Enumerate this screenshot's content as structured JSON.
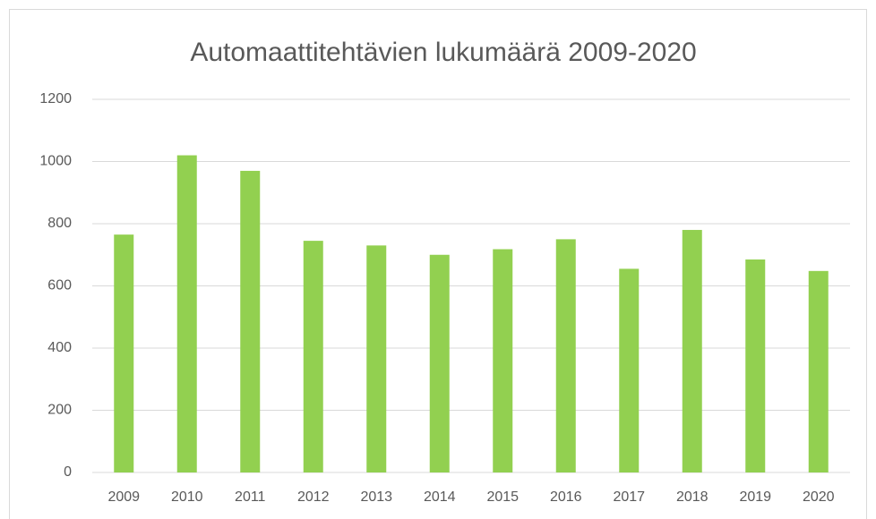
{
  "chart_data": {
    "type": "bar",
    "title": "Automaattitehtävien lukumäärä 2009-2020",
    "categories": [
      "2009",
      "2010",
      "2011",
      "2012",
      "2013",
      "2014",
      "2015",
      "2016",
      "2017",
      "2018",
      "2019",
      "2020"
    ],
    "values": [
      765,
      1020,
      970,
      745,
      730,
      700,
      718,
      750,
      655,
      780,
      685,
      648
    ],
    "color": "#92d050",
    "ylim": [
      0,
      1200
    ],
    "yticks": [
      0,
      200,
      400,
      600,
      800,
      1000,
      1200
    ],
    "grid": true
  }
}
